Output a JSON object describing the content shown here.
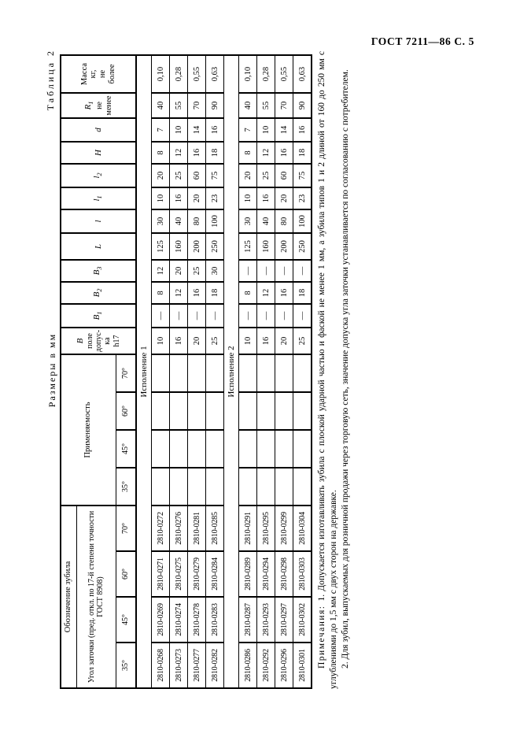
{
  "page": {
    "header": "ГОСТ 7211—86 С. 5"
  },
  "table_meta": {
    "number_label": "Таблица 2",
    "units_label": "Размеры в мм"
  },
  "table": {
    "header": {
      "designation_group": "Обозначение зубила",
      "designation_sub": "Угол заточки (пред. откл. по 17-й степени точности ГОСТ 8908)",
      "designation_angles": [
        "35°",
        "45°",
        "60°",
        "70°"
      ],
      "applicability": "Применяемость",
      "applicability_angles": [
        "35°",
        "45°",
        "60°",
        "70°"
      ],
      "width_field": {
        "base": "В",
        "note": "поле\nдопус-\nка\nh17"
      },
      "b1": {
        "base": "B",
        "sub": "1"
      },
      "b2": {
        "base": "B",
        "sub": "2"
      },
      "b3": {
        "base": "B",
        "sub": "3"
      },
      "L_col": "L",
      "l_col": "l",
      "l1": {
        "base": "l",
        "sub": "1"
      },
      "l2": {
        "base": "l",
        "sub": "2"
      },
      "H_col": "H",
      "d_col": "d",
      "r1": {
        "base": "R",
        "sub": "1",
        "note": "не\nменее"
      },
      "mass": "Масса\nкг,\nне\nболее"
    },
    "sections": [
      {
        "title": "Исполнение 1",
        "rows": [
          {
            "designations": [
              "2810-0268",
              "2810-0269",
              "2810-0271",
              "2810-0272"
            ],
            "applicability": [
              "",
              "",
              "",
              ""
            ],
            "values": [
              "10",
              "—",
              "8",
              "12",
              "125",
              "30",
              "10",
              "20",
              "8",
              "7",
              "40",
              "0,10"
            ]
          },
          {
            "designations": [
              "2810-0273",
              "2810-0274",
              "2810-0275",
              "2810-0276"
            ],
            "applicability": [
              "",
              "",
              "",
              ""
            ],
            "values": [
              "16",
              "—",
              "12",
              "20",
              "160",
              "40",
              "16",
              "25",
              "12",
              "10",
              "55",
              "0,28"
            ]
          },
          {
            "designations": [
              "2810-0277",
              "2810-0278",
              "2810-0279",
              "2810-0281"
            ],
            "applicability": [
              "",
              "",
              "",
              ""
            ],
            "values": [
              "20",
              "—",
              "16",
              "25",
              "200",
              "80",
              "20",
              "60",
              "16",
              "14",
              "70",
              "0,55"
            ]
          },
          {
            "designations": [
              "2810-0282",
              "2810-0283",
              "2810-0284",
              "2810-0285"
            ],
            "applicability": [
              "",
              "",
              "",
              ""
            ],
            "values": [
              "25",
              "—",
              "18",
              "30",
              "250",
              "100",
              "23",
              "75",
              "18",
              "16",
              "90",
              "0,63"
            ]
          }
        ]
      },
      {
        "title": "Исполнение 2",
        "rows": [
          {
            "designations": [
              "2810-0286",
              "2810-0287",
              "2810-0289",
              "2810-0291"
            ],
            "applicability": [
              "",
              "",
              "",
              ""
            ],
            "values": [
              "10",
              "—",
              "8",
              "—",
              "125",
              "30",
              "10",
              "20",
              "8",
              "7",
              "40",
              "0,10"
            ]
          },
          {
            "designations": [
              "2810-0292",
              "2810-0293",
              "2810-0294",
              "2810-0295"
            ],
            "applicability": [
              "",
              "",
              "",
              ""
            ],
            "values": [
              "16",
              "—",
              "12",
              "—",
              "160",
              "40",
              "16",
              "25",
              "12",
              "10",
              "55",
              "0,28"
            ]
          },
          {
            "designations": [
              "2810-0296",
              "2810-0297",
              "2810-0298",
              "2810-0299"
            ],
            "applicability": [
              "",
              "",
              "",
              ""
            ],
            "values": [
              "20",
              "—",
              "16",
              "—",
              "200",
              "80",
              "20",
              "60",
              "16",
              "14",
              "70",
              "0,55"
            ]
          },
          {
            "designations": [
              "2810-0301",
              "2810-0302",
              "2810-0303",
              "2810-0304"
            ],
            "applicability": [
              "",
              "",
              "",
              ""
            ],
            "values": [
              "25",
              "—",
              "18",
              "—",
              "250",
              "100",
              "23",
              "75",
              "18",
              "16",
              "90",
              "0,63"
            ]
          }
        ]
      }
    ]
  },
  "notes": {
    "label": "Примечания:",
    "note1": "1. Допускается изготавливать зубила с плоской ударной частью и фаской не менее 1 мм, а зубила типов 1 и 2 длиной от 160 до 250 мм с углублениями до 1,5 мм с двух сторон на державке.",
    "note2": "2. Для зубил, выпускаемых для розничной продажи через торговую сеть, значение допуска угла заточки устанавливается по согласованию с потребителем."
  }
}
